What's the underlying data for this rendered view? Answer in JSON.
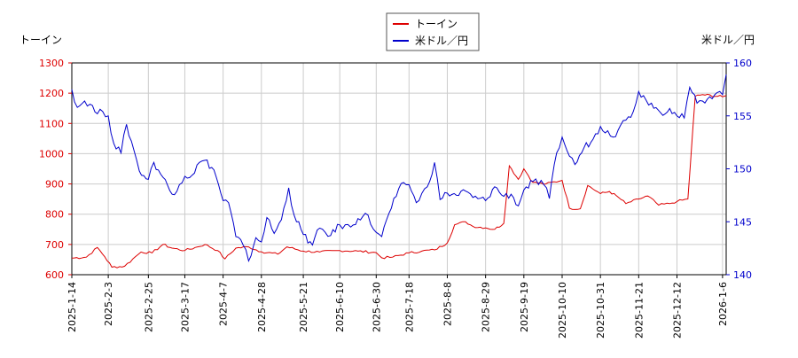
{
  "chart_data": {
    "type": "line",
    "legend": {
      "placement": "top-center",
      "entries": [
        {
          "name": "トーイン",
          "color": "#dd0000"
        },
        {
          "name": "米ドル／円",
          "color": "#0000cc"
        }
      ]
    },
    "left_axis": {
      "title": "トーイン",
      "color": "#dd0000",
      "ylim": [
        600,
        1300
      ],
      "ticks": [
        600,
        700,
        800,
        900,
        1000,
        1100,
        1200,
        1300
      ]
    },
    "right_axis": {
      "title": "米ドル／円",
      "color": "#0000cc",
      "ylim": [
        140,
        160
      ],
      "ticks": [
        140,
        145,
        150,
        155,
        160
      ]
    },
    "x_axis": {
      "type": "date",
      "range": [
        "2025-01-14",
        "2026-01-08"
      ],
      "tick_labels": [
        "2025-1-14",
        "2025-2-3",
        "2025-2-25",
        "2025-3-17",
        "2025-4-7",
        "2025-4-28",
        "2025-5-21",
        "2025-6-10",
        "2025-6-30",
        "2025-7-18",
        "2025-8-8",
        "2025-8-29",
        "2025-9-19",
        "2025-10-10",
        "2025-10-31",
        "2025-11-21",
        "2025-12-12",
        "2026-1-6"
      ]
    },
    "grid": true,
    "series": [
      {
        "name": "トーイン",
        "axis": "left",
        "color": "#dd0000",
        "points": [
          [
            "2025-01-14",
            655
          ],
          [
            "2025-01-22",
            658
          ],
          [
            "2025-01-28",
            690
          ],
          [
            "2025-02-01",
            660
          ],
          [
            "2025-02-05",
            625
          ],
          [
            "2025-02-12",
            628
          ],
          [
            "2025-02-18",
            660
          ],
          [
            "2025-02-21",
            675
          ],
          [
            "2025-02-27",
            672
          ],
          [
            "2025-03-05",
            700
          ],
          [
            "2025-03-10",
            688
          ],
          [
            "2025-03-17",
            680
          ],
          [
            "2025-03-24",
            692
          ],
          [
            "2025-03-28",
            700
          ],
          [
            "2025-04-04",
            680
          ],
          [
            "2025-04-08",
            652
          ],
          [
            "2025-04-14",
            688
          ],
          [
            "2025-04-21",
            692
          ],
          [
            "2025-04-28",
            676
          ],
          [
            "2025-05-07",
            668
          ],
          [
            "2025-05-12",
            692
          ],
          [
            "2025-05-21",
            678
          ],
          [
            "2025-05-30",
            675
          ],
          [
            "2025-06-10",
            680
          ],
          [
            "2025-06-20",
            678
          ],
          [
            "2025-06-30",
            673
          ],
          [
            "2025-07-03",
            656
          ],
          [
            "2025-07-09",
            658
          ],
          [
            "2025-07-18",
            672
          ],
          [
            "2025-07-25",
            678
          ],
          [
            "2025-08-01",
            682
          ],
          [
            "2025-08-08",
            705
          ],
          [
            "2025-08-12",
            765
          ],
          [
            "2025-08-18",
            775
          ],
          [
            "2025-08-22",
            760
          ],
          [
            "2025-08-29",
            755
          ],
          [
            "2025-09-03",
            750
          ],
          [
            "2025-09-08",
            770
          ],
          [
            "2025-09-11",
            960
          ],
          [
            "2025-09-16",
            915
          ],
          [
            "2025-09-19",
            950
          ],
          [
            "2025-09-24",
            905
          ],
          [
            "2025-10-01",
            900
          ],
          [
            "2025-10-10",
            912
          ],
          [
            "2025-10-14",
            820
          ],
          [
            "2025-10-20",
            818
          ],
          [
            "2025-10-24",
            895
          ],
          [
            "2025-10-31",
            868
          ],
          [
            "2025-11-05",
            875
          ],
          [
            "2025-11-10",
            855
          ],
          [
            "2025-11-14",
            835
          ],
          [
            "2025-11-21",
            850
          ],
          [
            "2025-11-26",
            860
          ],
          [
            "2025-12-02",
            830
          ],
          [
            "2025-12-08",
            835
          ],
          [
            "2025-12-12",
            842
          ],
          [
            "2025-12-18",
            850
          ],
          [
            "2025-12-22",
            1190
          ],
          [
            "2025-12-26",
            1195
          ],
          [
            "2026-01-06",
            1188
          ],
          [
            "2026-01-08",
            1192
          ]
        ]
      },
      {
        "name": "米ドル／円",
        "axis": "right",
        "color": "#0000cc",
        "points": [
          [
            "2025-01-14",
            157.5
          ],
          [
            "2025-01-17",
            155.8
          ],
          [
            "2025-01-21",
            156.4
          ],
          [
            "2025-01-24",
            156.1
          ],
          [
            "2025-01-28",
            155.2
          ],
          [
            "2025-01-31",
            155.4
          ],
          [
            "2025-02-03",
            155.0
          ],
          [
            "2025-02-06",
            152.4
          ],
          [
            "2025-02-10",
            151.5
          ],
          [
            "2025-02-13",
            154.2
          ],
          [
            "2025-02-17",
            151.8
          ],
          [
            "2025-02-20",
            149.8
          ],
          [
            "2025-02-25",
            149.0
          ],
          [
            "2025-02-28",
            150.6
          ],
          [
            "2025-03-05",
            149.2
          ],
          [
            "2025-03-10",
            147.6
          ],
          [
            "2025-03-14",
            148.5
          ],
          [
            "2025-03-17",
            149.3
          ],
          [
            "2025-03-21",
            149.4
          ],
          [
            "2025-03-25",
            150.6
          ],
          [
            "2025-03-28",
            150.8
          ],
          [
            "2025-04-02",
            149.9
          ],
          [
            "2025-04-07",
            147.0
          ],
          [
            "2025-04-10",
            146.8
          ],
          [
            "2025-04-14",
            143.6
          ],
          [
            "2025-04-18",
            142.8
          ],
          [
            "2025-04-21",
            141.3
          ],
          [
            "2025-04-25",
            143.5
          ],
          [
            "2025-04-28",
            143.1
          ],
          [
            "2025-05-01",
            145.4
          ],
          [
            "2025-05-05",
            143.9
          ],
          [
            "2025-05-09",
            145.2
          ],
          [
            "2025-05-13",
            148.2
          ],
          [
            "2025-05-16",
            145.6
          ],
          [
            "2025-05-21",
            143.8
          ],
          [
            "2025-05-26",
            142.8
          ],
          [
            "2025-05-30",
            144.4
          ],
          [
            "2025-06-05",
            143.7
          ],
          [
            "2025-06-10",
            144.7
          ],
          [
            "2025-06-16",
            144.5
          ],
          [
            "2025-06-20",
            145.3
          ],
          [
            "2025-06-24",
            145.8
          ],
          [
            "2025-06-30",
            144.0
          ],
          [
            "2025-07-03",
            143.6
          ],
          [
            "2025-07-07",
            145.8
          ],
          [
            "2025-07-11",
            147.4
          ],
          [
            "2025-07-15",
            148.7
          ],
          [
            "2025-07-18",
            148.5
          ],
          [
            "2025-07-22",
            146.8
          ],
          [
            "2025-07-28",
            148.3
          ],
          [
            "2025-08-01",
            150.6
          ],
          [
            "2025-08-04",
            147.1
          ],
          [
            "2025-08-08",
            147.7
          ],
          [
            "2025-08-13",
            147.5
          ],
          [
            "2025-08-18",
            147.9
          ],
          [
            "2025-08-22",
            147.3
          ],
          [
            "2025-08-29",
            147.0
          ],
          [
            "2025-09-03",
            148.3
          ],
          [
            "2025-09-08",
            147.4
          ],
          [
            "2025-09-12",
            147.6
          ],
          [
            "2025-09-16",
            146.5
          ],
          [
            "2025-09-19",
            148.0
          ],
          [
            "2025-09-24",
            148.8
          ],
          [
            "2025-09-30",
            148.5
          ],
          [
            "2025-10-03",
            147.2
          ],
          [
            "2025-10-07",
            151.5
          ],
          [
            "2025-10-10",
            153.0
          ],
          [
            "2025-10-14",
            151.2
          ],
          [
            "2025-10-17",
            150.4
          ],
          [
            "2025-10-22",
            152.0
          ],
          [
            "2025-10-27",
            152.8
          ],
          [
            "2025-10-31",
            154.0
          ],
          [
            "2025-11-04",
            153.6
          ],
          [
            "2025-11-07",
            153.0
          ],
          [
            "2025-11-11",
            154.1
          ],
          [
            "2025-11-14",
            154.6
          ],
          [
            "2025-11-18",
            155.4
          ],
          [
            "2025-11-21",
            157.3
          ],
          [
            "2025-11-25",
            156.5
          ],
          [
            "2025-11-28",
            156.2
          ],
          [
            "2025-12-03",
            155.3
          ],
          [
            "2025-12-08",
            155.7
          ],
          [
            "2025-12-12",
            155.0
          ],
          [
            "2025-12-16",
            154.8
          ],
          [
            "2025-12-19",
            157.7
          ],
          [
            "2025-12-23",
            156.2
          ],
          [
            "2025-12-26",
            156.4
          ],
          [
            "2025-12-30",
            156.8
          ],
          [
            "2026-01-03",
            157.2
          ],
          [
            "2026-01-06",
            157.0
          ],
          [
            "2026-01-08",
            158.9
          ]
        ]
      }
    ]
  }
}
